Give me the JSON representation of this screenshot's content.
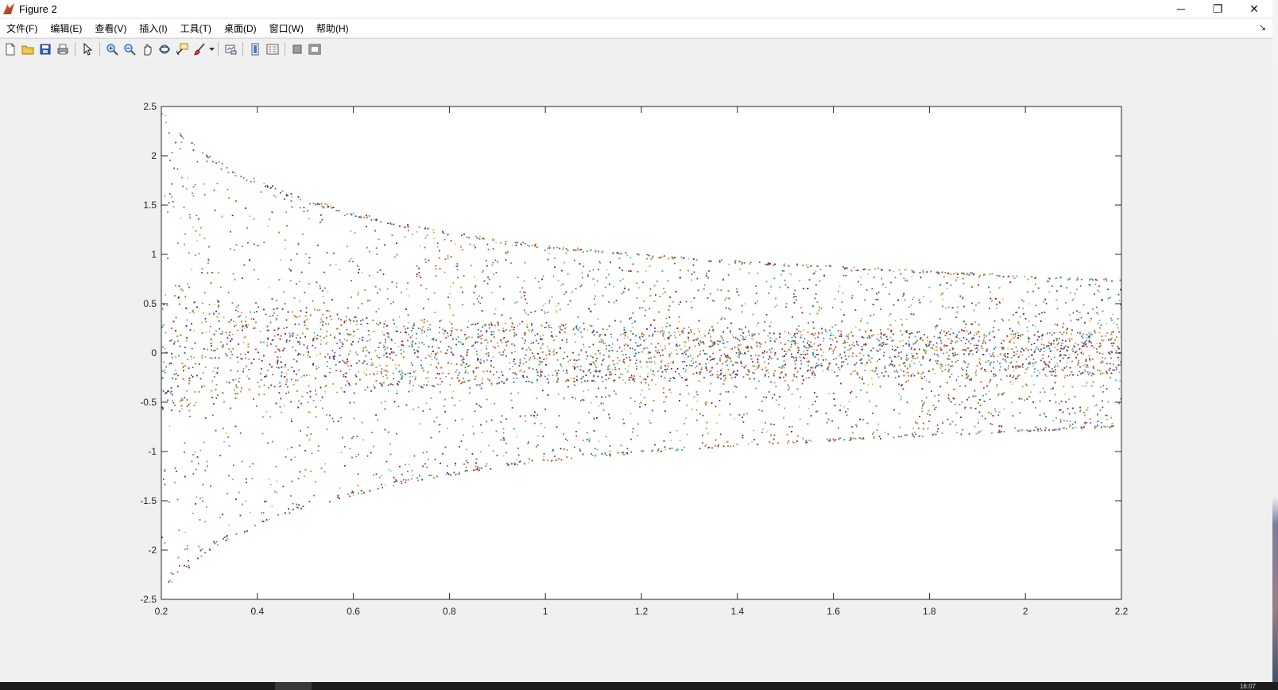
{
  "window": {
    "title": "Figure 2",
    "controls": {
      "minimize": "─",
      "restore": "❐",
      "close": "✕"
    }
  },
  "menubar": {
    "items": [
      "文件(F)",
      "编辑(E)",
      "查看(V)",
      "插入(I)",
      "工具(T)",
      "桌面(D)",
      "窗口(W)",
      "帮助(H)"
    ],
    "collapse_glyph": "↘"
  },
  "toolbar": {
    "buttons": [
      "new-figure-icon",
      "open-file-icon",
      "save-icon",
      "print-icon",
      "separator",
      "select-arrow-icon",
      "separator",
      "zoom-in-icon",
      "zoom-out-icon",
      "pan-hand-icon",
      "rotate-3d-icon",
      "data-cursor-icon",
      "brush-icon",
      "dropdown",
      "separator",
      "link-plot-icon",
      "separator",
      "colorbar-icon",
      "legend-icon",
      "separator",
      "hide-plot-tools-icon",
      "show-plot-tools-icon"
    ]
  },
  "taskbar": {
    "clock": "16:07"
  },
  "chart_data": {
    "type": "scatter",
    "title": "",
    "xlabel": "",
    "ylabel": "",
    "xlim": [
      0.2,
      2.2
    ],
    "ylim": [
      -2.5,
      2.5
    ],
    "xticks": [
      0.2,
      0.4,
      0.6,
      0.8,
      1,
      1.2,
      1.4,
      1.6,
      1.8,
      2,
      2.2
    ],
    "yticks": [
      -2.5,
      -2,
      -1.5,
      -1,
      -0.5,
      0,
      0.5,
      1,
      1.5,
      2,
      2.5
    ],
    "xtick_labels": [
      "0.2",
      "0.4",
      "0.6",
      "0.8",
      "1",
      "1.2",
      "1.4",
      "1.6",
      "1.8",
      "2",
      "2.2"
    ],
    "ytick_labels": [
      "-2.5",
      "-2",
      "-1.5",
      "-1",
      "-0.5",
      "0",
      "0.5",
      "1",
      "1.5",
      "2",
      "2.5"
    ],
    "grid": false,
    "legend": "none",
    "marker_colors": [
      "#0072BD",
      "#D95319",
      "#EDB120",
      "#7E2F8E",
      "#77AC30",
      "#4DBEEE",
      "#A2142F"
    ],
    "envelope": {
      "x": [
        0.2,
        0.25,
        0.3,
        0.35,
        0.4,
        0.5,
        0.6,
        0.7,
        0.8,
        0.9,
        1.0,
        1.2,
        1.4,
        1.6,
        1.8,
        2.0,
        2.2
      ],
      "upper": [
        2.46,
        2.2,
        2.0,
        1.86,
        1.76,
        1.57,
        1.44,
        1.32,
        1.24,
        1.16,
        1.1,
        1.01,
        0.94,
        0.89,
        0.84,
        0.79,
        0.75
      ],
      "lower": [
        -2.46,
        -2.2,
        -2.0,
        -1.86,
        -1.76,
        -1.57,
        -1.44,
        -1.32,
        -1.24,
        -1.16,
        -1.1,
        -1.01,
        -0.94,
        -0.89,
        -0.84,
        -0.79,
        -0.75
      ]
    },
    "dense_band": {
      "x": [
        0.2,
        0.4,
        0.6,
        1.0,
        1.4,
        1.8,
        2.2
      ],
      "half_width": [
        0.62,
        0.48,
        0.38,
        0.3,
        0.26,
        0.24,
        0.22
      ]
    }
  }
}
